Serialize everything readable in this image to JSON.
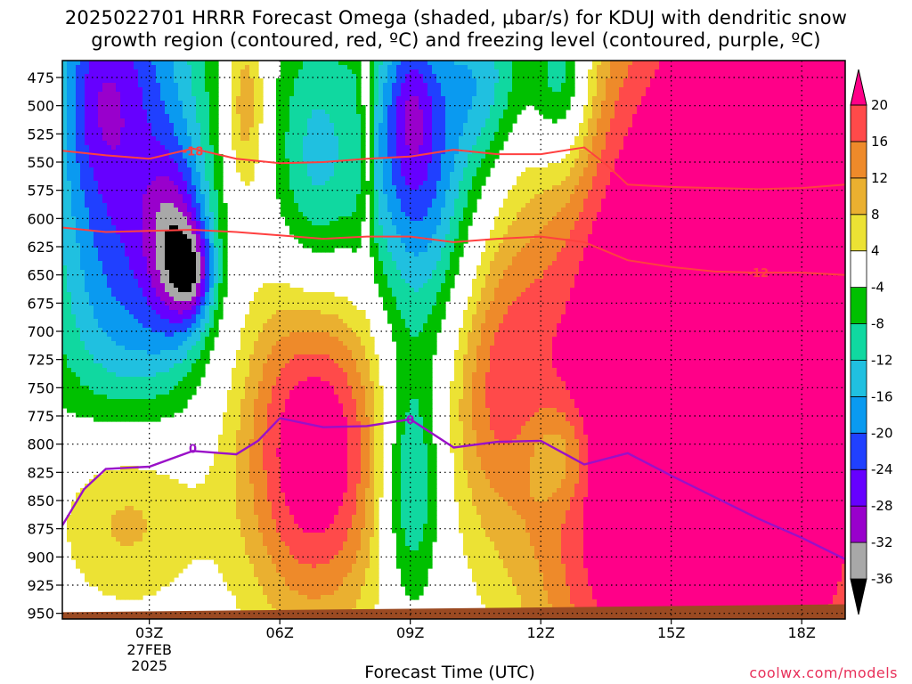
{
  "title_line1": "2025022701 HRRR Forecast Omega (shaded, μbar/s) for KDUJ with dendritic snow",
  "title_line2": "growth region (contoured, red, ºC) and freezing level (contoured, purple, ºC)",
  "xlabel": "Forecast Time (UTC)",
  "credit": "coolwx.com/models",
  "chart_data": {
    "type": "heatmap",
    "title": "2025022701 HRRR Forecast Omega (shaded, μbar/s) for KDUJ with dendritic snow growth region (contoured, red, ºC) and freezing level (contoured, purple, ºC)",
    "xlabel": "Forecast Time (UTC)",
    "ylabel": "",
    "x_range": [
      1.0,
      19.0
    ],
    "y_range": [
      460,
      955
    ],
    "y_ticks": [
      475,
      500,
      525,
      550,
      575,
      600,
      625,
      650,
      675,
      700,
      725,
      750,
      775,
      800,
      825,
      850,
      875,
      900,
      925,
      950
    ],
    "x_ticks": [
      {
        "hour": 3,
        "label": "03Z",
        "date": "27FEB",
        "year": "2025"
      },
      {
        "hour": 6,
        "label": "06Z"
      },
      {
        "hour": 9,
        "label": "09Z"
      },
      {
        "hour": 12,
        "label": "12Z"
      },
      {
        "hour": 15,
        "label": "15Z"
      },
      {
        "hour": 18,
        "label": "18Z"
      }
    ],
    "colorbar": {
      "levels": [
        -36,
        -32,
        -28,
        -24,
        -20,
        -16,
        -12,
        -8,
        -4,
        4,
        8,
        12,
        16,
        20
      ],
      "colors": [
        "#000000",
        "#a8a8a8",
        "#9900cc",
        "#6600ff",
        "#2040ff",
        "#0a9af0",
        "#20c0e0",
        "#10d8a0",
        "#00c000",
        "#ffffff",
        "#ece234",
        "#eab030",
        "#ee8a2a",
        "#ff4a4a",
        "#ff0088"
      ],
      "labels": [
        "-36",
        "-32",
        "-28",
        "-24",
        "-20",
        "-16",
        "-12",
        "-8",
        "-4",
        "4",
        "8",
        "12",
        "16",
        "20"
      ]
    },
    "omega_features": [
      {
        "x": 2.5,
        "y": 560,
        "sx": 1.3,
        "sy": 200,
        "v": -24
      },
      {
        "x": 3.6,
        "y": 625,
        "sx": 0.5,
        "sy": 55,
        "v": -18
      },
      {
        "x": 4.0,
        "y": 650,
        "sx": 0.35,
        "sy": 30,
        "v": -16
      },
      {
        "x": 1.8,
        "y": 490,
        "sx": 0.6,
        "sy": 60,
        "v": -8
      },
      {
        "x": 6.8,
        "y": 560,
        "sx": 0.7,
        "sy": 95,
        "v": -14
      },
      {
        "x": 9.2,
        "y": 560,
        "sx": 0.95,
        "sy": 110,
        "v": -22
      },
      {
        "x": 9.0,
        "y": 500,
        "sx": 0.4,
        "sy": 50,
        "v": -10
      },
      {
        "x": 10.8,
        "y": 475,
        "sx": 0.7,
        "sy": 55,
        "v": -12
      },
      {
        "x": 12.5,
        "y": 475,
        "sx": 0.5,
        "sy": 60,
        "v": -16
      },
      {
        "x": 9.0,
        "y": 835,
        "sx": 0.5,
        "sy": 75,
        "v": -16
      },
      {
        "x": 12.4,
        "y": 810,
        "sx": 0.6,
        "sy": 35,
        "v": -10
      },
      {
        "x": 5.2,
        "y": 500,
        "sx": 0.35,
        "sy": 60,
        "v": 13
      },
      {
        "x": 8.0,
        "y": 520,
        "sx": 0.12,
        "sy": 85,
        "v": 9
      },
      {
        "x": 6.8,
        "y": 800,
        "sx": 1.2,
        "sy": 110,
        "v": 26
      },
      {
        "x": 2.5,
        "y": 855,
        "sx": 1.2,
        "sy": 70,
        "v": 16
      },
      {
        "x": 11.0,
        "y": 740,
        "sx": 0.9,
        "sy": 95,
        "v": 14
      },
      {
        "x": 14.2,
        "y": 770,
        "sx": 1.7,
        "sy": 230,
        "v": 30
      },
      {
        "x": 17.9,
        "y": 660,
        "sx": 1.6,
        "sy": 280,
        "v": 36
      },
      {
        "x": 15.5,
        "y": 480,
        "sx": 1.0,
        "sy": 90,
        "v": 6
      }
    ],
    "dgz_contours": [
      {
        "label": "-18",
        "points": [
          [
            1.0,
            540
          ],
          [
            2.0,
            544
          ],
          [
            3.0,
            547
          ],
          [
            4.0,
            538
          ],
          [
            5.0,
            547
          ],
          [
            6.0,
            551
          ],
          [
            7.0,
            550
          ],
          [
            8.0,
            547
          ],
          [
            9.0,
            545
          ],
          [
            10.0,
            539
          ],
          [
            11.0,
            543
          ],
          [
            12.0,
            543
          ],
          [
            13.0,
            537
          ],
          [
            13.5,
            552
          ],
          [
            14.0,
            570
          ],
          [
            15.0,
            572
          ],
          [
            16.0,
            573
          ],
          [
            17.0,
            574
          ],
          [
            18.0,
            573
          ],
          [
            19.0,
            570
          ]
        ],
        "label_at": [
          4.0,
          540
        ]
      },
      {
        "label": "-12",
        "points": [
          [
            1.0,
            608
          ],
          [
            2.0,
            612
          ],
          [
            3.0,
            611
          ],
          [
            4.0,
            610
          ],
          [
            5.0,
            612
          ],
          [
            6.0,
            615
          ],
          [
            7.0,
            618
          ],
          [
            8.0,
            616
          ],
          [
            9.0,
            616
          ],
          [
            10.0,
            621
          ],
          [
            11.0,
            618
          ],
          [
            12.0,
            616
          ],
          [
            13.0,
            621
          ],
          [
            14.0,
            637
          ],
          [
            15.0,
            643
          ],
          [
            16.0,
            647
          ],
          [
            17.0,
            648
          ],
          [
            18.0,
            648
          ],
          [
            19.0,
            650
          ]
        ],
        "label_at": [
          17.0,
          648
        ]
      }
    ],
    "freezing_level": {
      "label": "0",
      "points": [
        [
          1.0,
          872
        ],
        [
          1.5,
          840
        ],
        [
          2.0,
          822
        ],
        [
          3.0,
          820
        ],
        [
          4.0,
          806
        ],
        [
          5.0,
          809
        ],
        [
          5.5,
          797
        ],
        [
          6.0,
          777
        ],
        [
          7.0,
          785
        ],
        [
          8.0,
          784
        ],
        [
          9.0,
          778
        ],
        [
          10.0,
          803
        ],
        [
          11.0,
          798
        ],
        [
          12.0,
          797
        ],
        [
          13.0,
          818
        ],
        [
          14.0,
          808
        ],
        [
          15.0,
          828
        ],
        [
          16.0,
          847
        ],
        [
          17.0,
          866
        ],
        [
          18.0,
          883
        ],
        [
          19.0,
          902
        ]
      ],
      "label_at": [
        [
          4.0,
          804
        ],
        [
          9.0,
          778
        ]
      ]
    },
    "terrain_top": [
      [
        1.0,
        949
      ],
      [
        19.0,
        942
      ]
    ],
    "grid": true
  }
}
